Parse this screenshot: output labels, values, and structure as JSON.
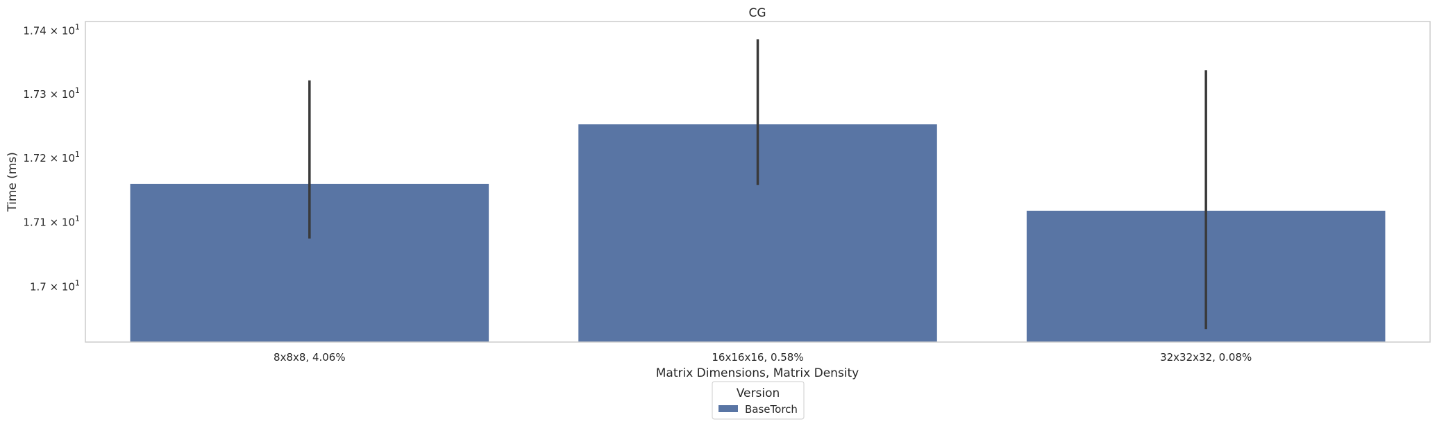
{
  "chart_data": {
    "type": "bar",
    "title": "CG",
    "xlabel": "Matrix Dimensions, Matrix Density",
    "ylabel": "Time (ms)",
    "yscale": "log",
    "ylim": [
      16.915,
      17.415
    ],
    "categories": [
      "8x8x8, 4.06%",
      "16x16x16, 0.58%",
      "32x32x32, 0.08%"
    ],
    "series": [
      {
        "name": "BaseTorch",
        "values": [
          17.16,
          17.253,
          17.118
        ],
        "error_low": [
          17.075,
          17.158,
          16.935
        ],
        "error_high": [
          17.322,
          17.387,
          17.338
        ]
      }
    ],
    "yticks": [
      17.0,
      17.1,
      17.2,
      17.3,
      17.4
    ],
    "ytick_labels": [
      {
        "base": "1.7",
        "exp": "1"
      },
      {
        "base": "1.71",
        "exp": "1"
      },
      {
        "base": "1.72",
        "exp": "1"
      },
      {
        "base": "1.73",
        "exp": "1"
      },
      {
        "base": "1.74",
        "exp": "1"
      }
    ],
    "legend": {
      "title": "Version",
      "position": "bottom-center"
    },
    "grid": false,
    "colors": {
      "bar": "#5975a4",
      "errorbar": "#3a3a3a",
      "frame": "#cccccc",
      "text": "#262626"
    }
  }
}
